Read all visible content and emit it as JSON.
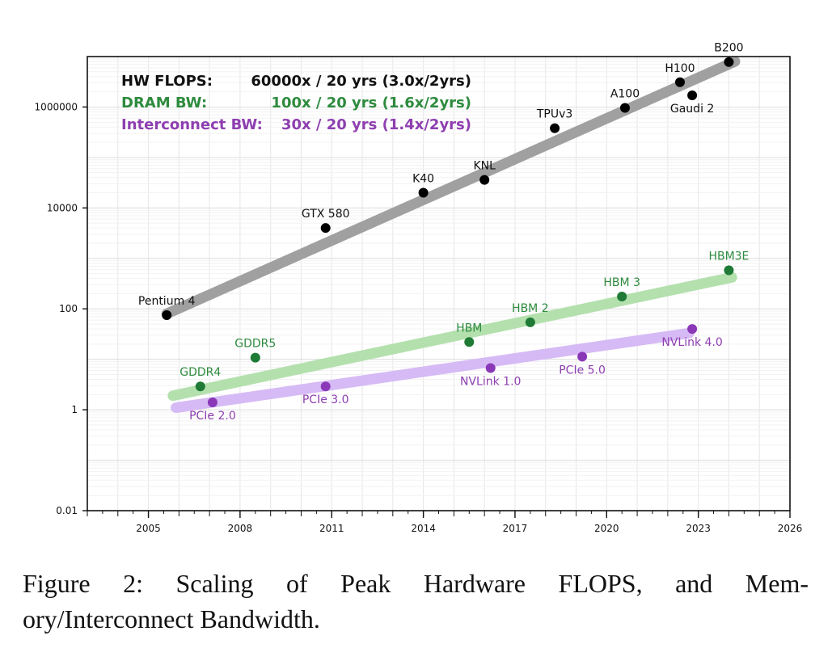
{
  "chart_data": {
    "type": "scatter",
    "yscale": "log",
    "xlim": [
      2003,
      2026
    ],
    "ylim": [
      0.01,
      10000000
    ],
    "x_ticks": [
      2005,
      2008,
      2011,
      2014,
      2017,
      2020,
      2023,
      2026
    ],
    "x_tick_labels": [
      "2005",
      "2008",
      "2011",
      "2014",
      "2017",
      "2020",
      "2023",
      "2026"
    ],
    "y_ticks": [
      0.01,
      1,
      100,
      10000,
      1000000
    ],
    "y_tick_labels": [
      "0.01",
      "1",
      "100",
      "10000",
      "1000000"
    ],
    "grid": true,
    "legend": {
      "placement": "top-left",
      "entries": [
        {
          "name": "HW FLOPS:",
          "summary": "60000x / 20 yrs (3.0x/2yrs)",
          "color": "#111111"
        },
        {
          "name": "DRAM BW:",
          "summary": "100x / 20 yrs (1.6x/2yrs)",
          "color": "#2e8b3e"
        },
        {
          "name": "Interconnect BW:",
          "summary": "30x / 20 yrs (1.4x/2yrs)",
          "color": "#8e3fb0"
        }
      ]
    },
    "series": [
      {
        "name": "HW FLOPS",
        "point_color": "#000000",
        "label_color": "#111111",
        "trend_color": "#a0a0a0",
        "trend": {
          "x": [
            2005.6,
            2024.2
          ],
          "y": [
            80,
            8000000
          ]
        },
        "points": [
          {
            "label": "Pentium 4",
            "x": 2005.6,
            "y": 75,
            "label_pos": "above"
          },
          {
            "label": "GTX 580",
            "x": 2010.8,
            "y": 4000,
            "label_pos": "above"
          },
          {
            "label": "K40",
            "x": 2014.0,
            "y": 20000,
            "label_pos": "above"
          },
          {
            "label": "KNL",
            "x": 2016.0,
            "y": 36000,
            "label_pos": "above"
          },
          {
            "label": "TPUv3",
            "x": 2018.3,
            "y": 380000,
            "label_pos": "above"
          },
          {
            "label": "A100",
            "x": 2020.6,
            "y": 960000,
            "label_pos": "above"
          },
          {
            "label": "H100",
            "x": 2022.4,
            "y": 3100000,
            "label_pos": "above"
          },
          {
            "label": "Gaudi 2",
            "x": 2022.8,
            "y": 1700000,
            "label_pos": "below"
          },
          {
            "label": "B200",
            "x": 2024.0,
            "y": 7800000,
            "label_pos": "above"
          }
        ]
      },
      {
        "name": "DRAM BW",
        "point_color": "#1e7a35",
        "label_color": "#2e8b3e",
        "trend_color": "#b4e0ae",
        "trend": {
          "x": [
            2005.8,
            2024.1
          ],
          "y": [
            1.9,
            420
          ]
        },
        "points": [
          {
            "label": "GDDR4",
            "x": 2006.7,
            "y": 2.9,
            "label_pos": "above"
          },
          {
            "label": "GDDR5",
            "x": 2008.5,
            "y": 10.8,
            "label_pos": "above"
          },
          {
            "label": "HBM",
            "x": 2015.5,
            "y": 22,
            "label_pos": "above"
          },
          {
            "label": "HBM 2",
            "x": 2017.5,
            "y": 54,
            "label_pos": "above"
          },
          {
            "label": "HBM 3",
            "x": 2020.5,
            "y": 175,
            "label_pos": "above"
          },
          {
            "label": "HBM3E",
            "x": 2024.0,
            "y": 580,
            "label_pos": "above"
          }
        ]
      },
      {
        "name": "Interconnect BW",
        "point_color": "#8a38b8",
        "label_color": "#8e3fb0",
        "trend_color": "#d6baf5",
        "trend": {
          "x": [
            2005.9,
            2022.7
          ],
          "y": [
            1.1,
            33
          ]
        },
        "points": [
          {
            "label": "PCIe 2.0",
            "x": 2007.1,
            "y": 1.4,
            "label_pos": "below"
          },
          {
            "label": "PCIe 3.0",
            "x": 2010.8,
            "y": 2.9,
            "label_pos": "below"
          },
          {
            "label": "NVLink 1.0",
            "x": 2016.2,
            "y": 6.7,
            "label_pos": "below"
          },
          {
            "label": "PCIe 5.0",
            "x": 2019.2,
            "y": 11.3,
            "label_pos": "below"
          },
          {
            "label": "NVLink 4.0",
            "x": 2022.8,
            "y": 40,
            "label_pos": "below"
          }
        ]
      }
    ]
  },
  "caption": {
    "line1": "Figure 2: Scaling of Peak Hardware FLOPS, and Mem-",
    "line2": "ory/Interconnect Bandwidth."
  }
}
